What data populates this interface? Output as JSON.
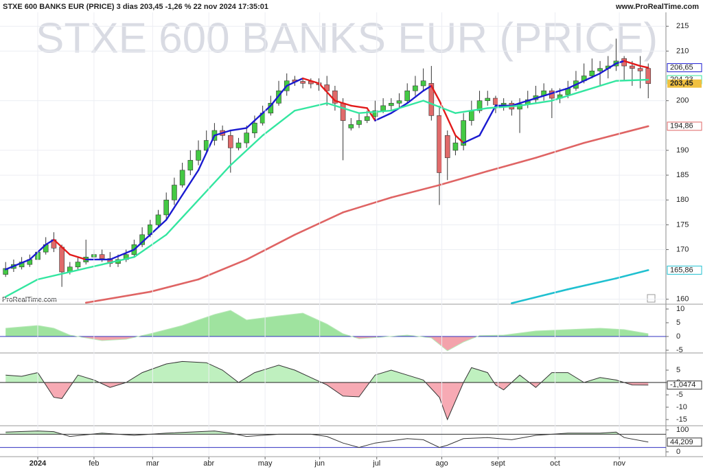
{
  "header": {
    "title": "STXE 600 BANKS EUR (PRICE) 3 dias 203,45 -1,26 % 22 nov 2024 17:35:01",
    "site": "www.ProRealTime.com"
  },
  "watermark": "STXE 600 BANKS EUR (PRICE)",
  "brand": "ProRealTime.com",
  "chart_data": [
    {
      "type": "candlestick",
      "xlim": [
        -0.7,
        82.2
      ],
      "ylim": [
        159,
        217.8
      ],
      "yticks": [
        160,
        170,
        175,
        180,
        185,
        190,
        200,
        210,
        215
      ],
      "grid": true,
      "up_color": "#44c944",
      "down_color": "#e06a6a",
      "close_label": "203,45",
      "close_label_fill": "#f0c040",
      "x": [
        0,
        1,
        2,
        3,
        4,
        5,
        6,
        7,
        8,
        9,
        10,
        11,
        12,
        13,
        14,
        15,
        16,
        17,
        18,
        19,
        20,
        21,
        22,
        23,
        24,
        25,
        26,
        27,
        28,
        29,
        30,
        31,
        32,
        33,
        34,
        35,
        36,
        37,
        38,
        39,
        40,
        41,
        42,
        43,
        44,
        45,
        46,
        47,
        48,
        49,
        50,
        51,
        52,
        53,
        54,
        55,
        56,
        57,
        58,
        59,
        60,
        61,
        62,
        63,
        64,
        65,
        66,
        67,
        68,
        69,
        70,
        71,
        72,
        73,
        74,
        75,
        76,
        77,
        78,
        79,
        80
      ],
      "open": [
        165,
        166.2,
        166.5,
        167,
        168,
        169.5,
        172,
        170.5,
        165.5,
        166.5,
        167.5,
        168.5,
        169,
        168.2,
        167.2,
        168,
        169,
        171,
        173,
        175,
        177,
        180,
        183,
        186,
        188,
        190,
        192,
        194,
        193,
        190.5,
        191.5,
        193.5,
        195.5,
        197.5,
        199.5,
        202,
        204.2,
        203.9,
        203.9,
        203.6,
        203.2,
        202,
        199.5,
        194.5,
        195.2,
        196,
        196.8,
        198,
        199,
        199.5,
        200,
        202,
        203,
        203.5,
        197,
        193,
        190,
        191,
        196,
        198,
        200,
        200.5,
        199.2,
        199.5,
        198.3,
        199.3,
        200.2,
        201,
        202,
        200.5,
        201.2,
        202.5,
        204,
        205,
        206,
        206.5,
        207,
        208.5,
        207,
        206.5,
        206.5
      ],
      "high": [
        167.5,
        168,
        168.5,
        169,
        171,
        172.5,
        173.5,
        171,
        167.5,
        168.5,
        172,
        170,
        170,
        169.5,
        169,
        170,
        172,
        174.5,
        176,
        178,
        181.5,
        184.5,
        187.5,
        190,
        192,
        194,
        195.5,
        195,
        194,
        192.5,
        195,
        197,
        199,
        201,
        204,
        205.5,
        205,
        204.5,
        204.5,
        204.5,
        205,
        203,
        200.5,
        196.5,
        197.5,
        198,
        200,
        200.5,
        200.5,
        201.5,
        203.5,
        205,
        206.5,
        207,
        199,
        194,
        193,
        197.5,
        200,
        202,
        202,
        201,
        200.5,
        200,
        200.5,
        202,
        203,
        203.5,
        202.5,
        202.5,
        204,
        206,
        207.5,
        208.5,
        208,
        209,
        212.5,
        209,
        208,
        209,
        207.5
      ],
      "low": [
        164.5,
        165.5,
        166,
        166.5,
        167.5,
        169,
        169.5,
        162.5,
        165,
        166,
        167,
        168,
        167.5,
        166.5,
        166.5,
        167.5,
        168.5,
        170.5,
        172.5,
        174.5,
        176,
        179,
        182.5,
        185,
        187,
        189.5,
        191,
        192,
        185.5,
        190,
        190.5,
        192.5,
        195,
        197,
        199,
        201,
        203,
        202.5,
        202.5,
        202,
        199,
        198,
        188,
        194,
        194.5,
        195.5,
        196,
        197.5,
        198,
        198.5,
        199.5,
        201,
        202,
        196,
        179,
        184,
        189,
        190,
        195,
        197.5,
        199,
        197.5,
        198,
        197,
        193.5,
        198.5,
        199.5,
        200,
        196.5,
        199.5,
        200.5,
        202,
        203.5,
        204.5,
        203,
        204.5,
        206,
        204,
        203,
        202.5,
        200.5
      ],
      "close": [
        166.2,
        167,
        167.5,
        168,
        169.5,
        171,
        170.3,
        165.5,
        166.5,
        167.5,
        168.5,
        169,
        168.2,
        167.2,
        168,
        169,
        171,
        173,
        175,
        177,
        180,
        183,
        186,
        188,
        190,
        192,
        194,
        193,
        190.5,
        191.5,
        193.5,
        195.5,
        197.5,
        199.5,
        202,
        204,
        203.8,
        203.5,
        203.4,
        203.2,
        202,
        199.5,
        196,
        195.2,
        196,
        196.8,
        198,
        199,
        199.5,
        200,
        202,
        203,
        204,
        197,
        185.5,
        188.5,
        191.5,
        196,
        198,
        200,
        200.5,
        199.2,
        199.5,
        198.3,
        199.3,
        200.2,
        201,
        202,
        200.5,
        201.2,
        202.5,
        204,
        205,
        206,
        206.5,
        207,
        208,
        207,
        206.5,
        206,
        203.45
      ],
      "series": [
        {
          "color": "#1a1ad0",
          "down_color": "#e21a1a",
          "width": 2.4,
          "value_label": "206,65",
          "x": [
            0,
            3,
            5,
            6,
            8,
            10,
            13,
            16,
            20,
            24,
            26,
            28,
            30,
            33,
            35,
            37,
            39,
            41,
            43,
            45,
            46,
            48,
            50,
            52,
            53,
            54,
            56,
            57,
            59,
            61,
            63,
            66,
            70,
            74,
            76,
            77,
            79,
            80
          ],
          "values": [
            166,
            168,
            171,
            172,
            169,
            168,
            168,
            170,
            176,
            186,
            193,
            194,
            194.5,
            199,
            203,
            204.5,
            203.5,
            200,
            199,
            198.5,
            196,
            197.5,
            199.5,
            202,
            203,
            200,
            193,
            191.5,
            193,
            199,
            199,
            200.5,
            202.5,
            205.5,
            207.5,
            208,
            207,
            206.65
          ]
        },
        {
          "color": "#33e6a0",
          "width": 2.4,
          "value_label": "204,23",
          "x": [
            0,
            4,
            8,
            12,
            16,
            20,
            24,
            28,
            32,
            36,
            40,
            44,
            48,
            52,
            56,
            60,
            64,
            68,
            72,
            76,
            80
          ],
          "values": [
            160.5,
            164,
            165.5,
            167,
            168.5,
            173,
            180,
            187,
            193,
            198,
            199.5,
            197.5,
            198,
            200,
            197.5,
            198.5,
            199,
            200,
            202,
            204,
            204.23
          ]
        },
        {
          "color": "#df6464",
          "width": 2.6,
          "value_label": "194,86",
          "x": [
            10,
            18,
            24,
            30,
            36,
            42,
            48,
            54,
            60,
            66,
            72,
            80
          ],
          "values": [
            159.3,
            161.5,
            164,
            168,
            173,
            177.5,
            180.5,
            183,
            185.8,
            188.5,
            191.5,
            194.86
          ]
        },
        {
          "color": "#1fc0d0",
          "width": 2.6,
          "value_label": "165,86",
          "x": [
            63,
            70,
            76,
            80
          ],
          "values": [
            159.2,
            162,
            164.2,
            165.86
          ]
        }
      ]
    },
    {
      "type": "oscillator",
      "xlim": [
        -0.7,
        82.2
      ],
      "ylim": [
        -6,
        11.75
      ],
      "yticks": [
        -5,
        0,
        5,
        10
      ],
      "base": 0,
      "base_color": "#3030c0",
      "fill_positive": "#9fe39f",
      "fill_negative": "#f3a3ab",
      "series": [
        {
          "color": "#b8e8b8",
          "x": [
            0,
            4,
            6,
            8,
            12,
            15,
            18,
            22,
            26,
            28,
            30,
            34,
            37,
            40,
            42,
            44,
            47,
            50,
            53,
            55,
            57,
            59,
            62,
            66,
            70,
            74,
            77,
            80
          ],
          "values": [
            3,
            4,
            3,
            0.5,
            -1.5,
            -1,
            1,
            4,
            8,
            9.5,
            6,
            7.5,
            8.5,
            4.5,
            1,
            -0.8,
            -0.2,
            0.5,
            -0.5,
            -5.2,
            -2,
            0.3,
            0.5,
            2,
            2.5,
            3,
            2.5,
            1
          ]
        }
      ]
    },
    {
      "type": "oscillator",
      "xlim": [
        -0.7,
        82.2
      ],
      "ylim": [
        -17.5,
        11.4
      ],
      "yticks": [
        5,
        0,
        -5,
        -10,
        -15
      ],
      "base": 0,
      "base_color": "#222",
      "fill_positive": "#bff0bf",
      "fill_negative": "#f7aab4",
      "series": [
        {
          "color": "#333",
          "value_label": "-1,0474",
          "x": [
            0,
            2,
            4,
            6,
            7,
            9,
            11,
            13,
            15,
            17,
            20,
            22,
            25,
            27,
            29,
            31,
            34,
            36,
            38,
            40,
            42,
            44,
            46,
            48,
            50,
            52,
            54,
            55,
            57,
            58,
            60,
            61,
            62,
            64,
            66,
            68,
            70,
            72,
            74,
            76,
            78,
            80
          ],
          "values": [
            3,
            2.5,
            4,
            -6,
            -6.5,
            3,
            1,
            -2,
            0,
            4,
            7.5,
            8.5,
            8,
            5,
            0,
            4,
            7,
            5,
            2,
            -1,
            -5.5,
            -5.8,
            3,
            5,
            3,
            1,
            -6,
            -15,
            0,
            6,
            4,
            -1,
            -3,
            3,
            -2,
            4,
            4,
            0,
            2,
            1,
            -1,
            -1.0474
          ]
        }
      ]
    },
    {
      "type": "oscillator",
      "xlim": [
        -0.7,
        82.2
      ],
      "ylim": [
        -21.9,
        112.5
      ],
      "yticks": [
        100,
        0
      ],
      "base": 80,
      "base_color": "#333",
      "fill_positive": "#bfe8bf",
      "reference_lines": [
        20
      ],
      "reference_color": "#3030c0",
      "xticks": [
        {
          "value": 4,
          "label": "2024"
        },
        {
          "value": 11,
          "label": "feb"
        },
        {
          "value": 18.3,
          "label": "mar"
        },
        {
          "value": 25.3,
          "label": "abr"
        },
        {
          "value": 32.3,
          "label": "may"
        },
        {
          "value": 39.1,
          "label": "jun"
        },
        {
          "value": 46.2,
          "label": "jul"
        },
        {
          "value": 54.3,
          "label": "ago"
        },
        {
          "value": 61.3,
          "label": "sept"
        },
        {
          "value": 68.4,
          "label": "oct"
        },
        {
          "value": 76.4,
          "label": "nov"
        }
      ],
      "series": [
        {
          "color": "#333",
          "value_label": "44,209",
          "x": [
            0,
            4,
            6,
            8,
            12,
            16,
            20,
            26,
            28,
            30,
            34,
            38,
            40,
            42,
            44,
            46,
            50,
            52,
            54,
            55,
            57,
            60,
            63,
            66,
            70,
            74,
            76,
            77,
            80
          ],
          "values": [
            90,
            95,
            92,
            70,
            85,
            75,
            85,
            95,
            85,
            70,
            80,
            80,
            70,
            40,
            20,
            40,
            60,
            55,
            20,
            30,
            60,
            65,
            55,
            75,
            85,
            85,
            90,
            65,
            44.209
          ]
        }
      ]
    }
  ]
}
